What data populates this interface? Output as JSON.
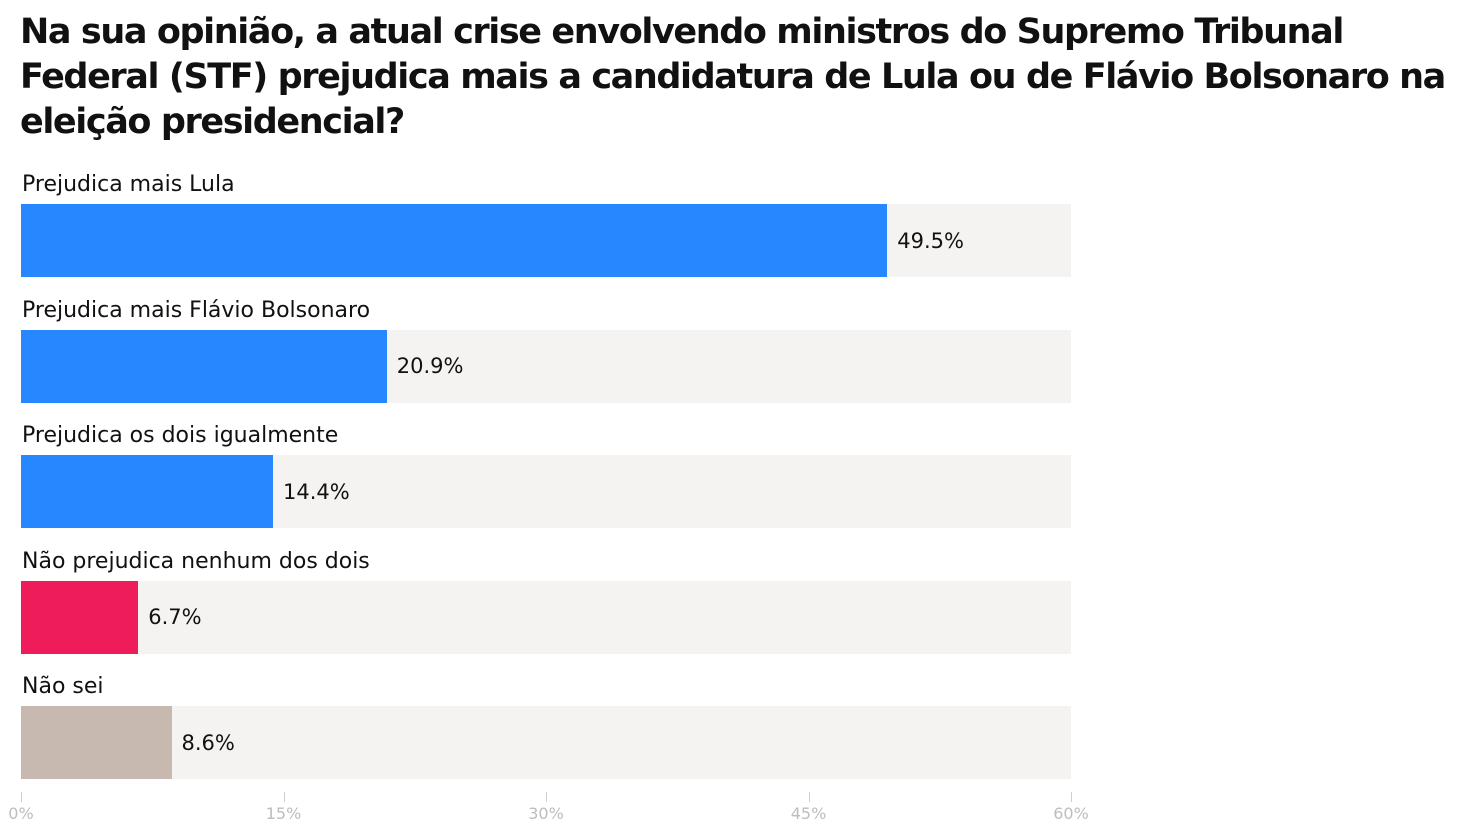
{
  "title": "Na sua opinião, a atual crise envolvendo ministros do Supremo Tribunal Federal (STF) prejudica mais a candidatura de Lula ou de Flávio Bolsonaro na eleição presidencial?",
  "chart_data": {
    "type": "bar",
    "orientation": "horizontal",
    "title": "Na sua opinião, a atual crise envolvendo ministros do Supremo Tribunal Federal (STF) prejudica mais a candidatura de Lula ou de Flávio Bolsonaro na eleição presidencial?",
    "categories": [
      "Prejudica mais Lula",
      "Prejudica mais Flávio Bolsonaro",
      "Prejudica os dois igualmente",
      "Não prejudica nenhum dos dois",
      "Não sei"
    ],
    "values": [
      49.5,
      20.9,
      14.4,
      6.7,
      8.6
    ],
    "value_labels": [
      "49.5%",
      "20.9%",
      "14.4%",
      "6.7%",
      "8.6%"
    ],
    "bar_colors": [
      "#2787ff",
      "#2787ff",
      "#2787ff",
      "#ef1c5c",
      "#c7b9b0"
    ],
    "track_color": "#f4f3f1",
    "xlim": [
      0,
      60
    ],
    "x_ticks": [
      0,
      15,
      30,
      45,
      60
    ],
    "x_tick_labels": [
      "0%",
      "15%",
      "30%",
      "45%",
      "60%"
    ],
    "grid": false,
    "legend": "none"
  }
}
